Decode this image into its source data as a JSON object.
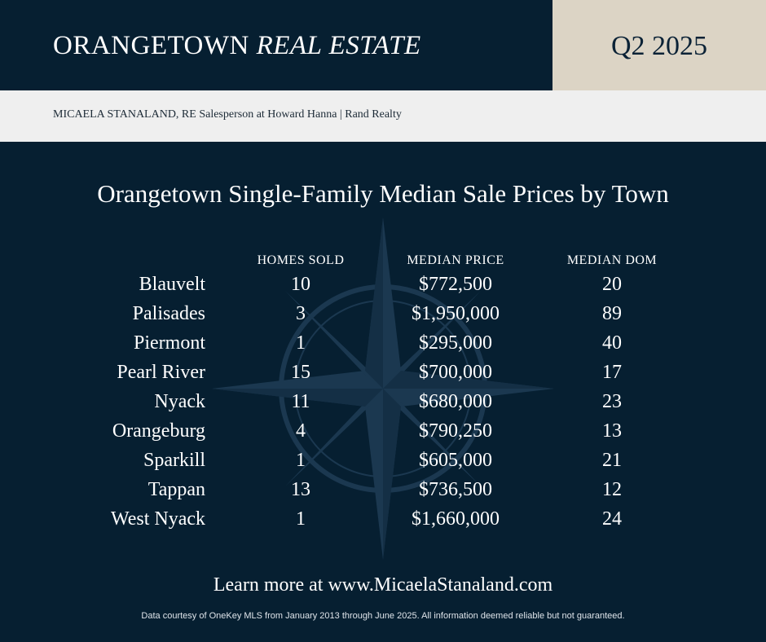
{
  "header": {
    "brand_regular": "ORANGETOWN",
    "brand_italic": "REAL ESTATE",
    "quarter": "Q2 2025"
  },
  "agent_line": "MICAELA STANALAND, RE Salesperson at Howard Hanna | Rand Realty",
  "title": "Orangetown Single-Family Median Sale Prices by Town",
  "table": {
    "columns": [
      "HOMES SOLD",
      "MEDIAN PRICE",
      "MEDIAN DOM"
    ],
    "rows": [
      {
        "town": "Blauvelt",
        "homes_sold": "10",
        "median_price": "$772,500",
        "median_dom": "20"
      },
      {
        "town": "Palisades",
        "homes_sold": "3",
        "median_price": "$1,950,000",
        "median_dom": "89"
      },
      {
        "town": "Piermont",
        "homes_sold": "1",
        "median_price": "$295,000",
        "median_dom": "40"
      },
      {
        "town": "Pearl River",
        "homes_sold": "15",
        "median_price": "$700,000",
        "median_dom": "17"
      },
      {
        "town": "Nyack",
        "homes_sold": "11",
        "median_price": "$680,000",
        "median_dom": "23"
      },
      {
        "town": "Orangeburg",
        "homes_sold": "4",
        "median_price": "$790,250",
        "median_dom": "13"
      },
      {
        "town": "Sparkill",
        "homes_sold": "1",
        "median_price": "$605,000",
        "median_dom": "21"
      },
      {
        "town": "Tappan",
        "homes_sold": "13",
        "median_price": "$736,500",
        "median_dom": "12"
      },
      {
        "town": "West Nyack",
        "homes_sold": "1",
        "median_price": "$1,660,000",
        "median_dom": "24"
      }
    ]
  },
  "footer": {
    "learn_more": "Learn more at www.MicaelaStanaland.com",
    "disclaimer": "Data courtesy of OneKey MLS from January 2013 through June 2025. All information deemed reliable but not guaranteed."
  },
  "decor": {
    "background_icon": "compass-rose-icon",
    "colors": {
      "navy": "#061f31",
      "beige": "#dcd4c5",
      "light_band": "#efefef"
    }
  }
}
